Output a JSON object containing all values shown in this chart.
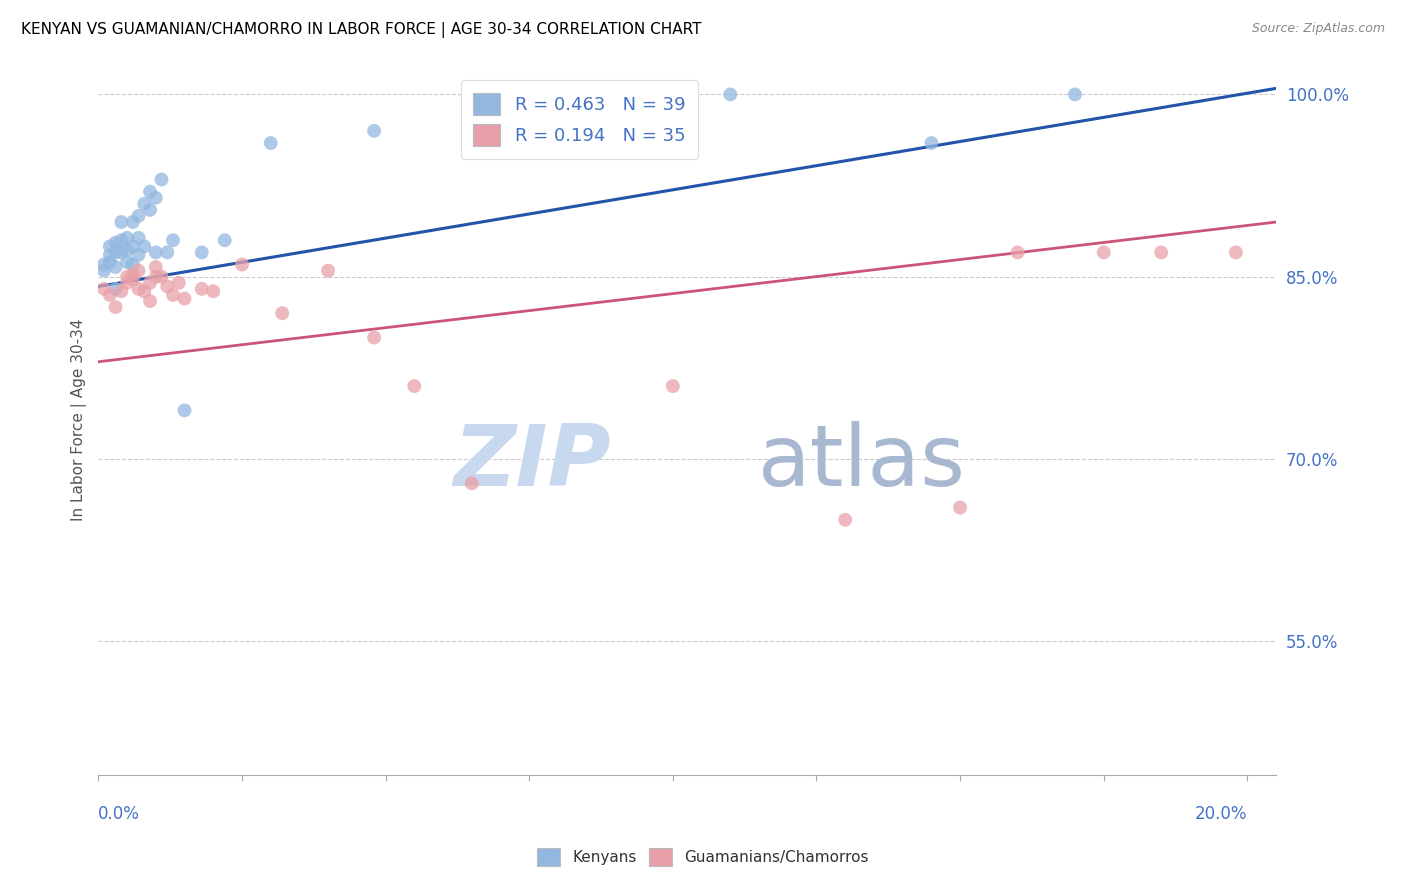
{
  "title": "KENYAN VS GUAMANIAN/CHAMORRO IN LABOR FORCE | AGE 30-34 CORRELATION CHART",
  "source": "Source: ZipAtlas.com",
  "ylabel": "In Labor Force | Age 30-34",
  "xlim": [
    0.0,
    0.205
  ],
  "ylim": [
    0.44,
    1.025
  ],
  "yticks": [
    0.55,
    0.7,
    0.85,
    1.0
  ],
  "ytick_labels": [
    "55.0%",
    "70.0%",
    "85.0%",
    "100.0%"
  ],
  "legend_r1": "R = 0.463",
  "legend_n1": "N = 39",
  "legend_r2": "R = 0.194",
  "legend_n2": "N = 35",
  "blue_color": "#92b8e0",
  "pink_color": "#e8a0a8",
  "blue_line_color": "#2255aa",
  "pink_line_color": "#cc5577",
  "background_color": "#ffffff",
  "grid_color": "#cccccc",
  "axis_label_color": "#4472c4",
  "title_color": "#000000",
  "source_color": "#888888",
  "kenyan_x": [
    0.001,
    0.001,
    0.002,
    0.002,
    0.002,
    0.003,
    0.003,
    0.003,
    0.003,
    0.004,
    0.004,
    0.004,
    0.005,
    0.005,
    0.005,
    0.006,
    0.006,
    0.006,
    0.007,
    0.007,
    0.007,
    0.008,
    0.008,
    0.009,
    0.009,
    0.01,
    0.01,
    0.011,
    0.012,
    0.013,
    0.015,
    0.018,
    0.022,
    0.03,
    0.048,
    0.065,
    0.11,
    0.145,
    0.17
  ],
  "kenyan_y": [
    0.855,
    0.86,
    0.862,
    0.868,
    0.875,
    0.84,
    0.858,
    0.87,
    0.878,
    0.87,
    0.88,
    0.895,
    0.862,
    0.872,
    0.882,
    0.86,
    0.875,
    0.895,
    0.868,
    0.882,
    0.9,
    0.875,
    0.91,
    0.905,
    0.92,
    0.87,
    0.915,
    0.93,
    0.87,
    0.88,
    0.74,
    0.87,
    0.88,
    0.96,
    0.97,
    1.0,
    1.0,
    0.96,
    1.0
  ],
  "guam_x": [
    0.001,
    0.002,
    0.003,
    0.004,
    0.005,
    0.005,
    0.006,
    0.006,
    0.007,
    0.007,
    0.008,
    0.009,
    0.009,
    0.01,
    0.01,
    0.011,
    0.012,
    0.013,
    0.014,
    0.015,
    0.018,
    0.02,
    0.025,
    0.032,
    0.04,
    0.048,
    0.055,
    0.065,
    0.1,
    0.13,
    0.15,
    0.16,
    0.175,
    0.185,
    0.198
  ],
  "guam_y": [
    0.84,
    0.835,
    0.825,
    0.838,
    0.845,
    0.85,
    0.848,
    0.852,
    0.84,
    0.855,
    0.838,
    0.83,
    0.845,
    0.85,
    0.858,
    0.85,
    0.842,
    0.835,
    0.845,
    0.832,
    0.84,
    0.838,
    0.86,
    0.82,
    0.855,
    0.8,
    0.76,
    0.68,
    0.76,
    0.65,
    0.66,
    0.87,
    0.87,
    0.87,
    0.87
  ],
  "blue_regression_x0": 0.0,
  "blue_regression_y0": 0.842,
  "blue_regression_x1": 0.205,
  "blue_regression_y1": 1.005,
  "pink_regression_x0": 0.0,
  "pink_regression_y0": 0.78,
  "pink_regression_x1": 0.205,
  "pink_regression_y1": 0.895
}
